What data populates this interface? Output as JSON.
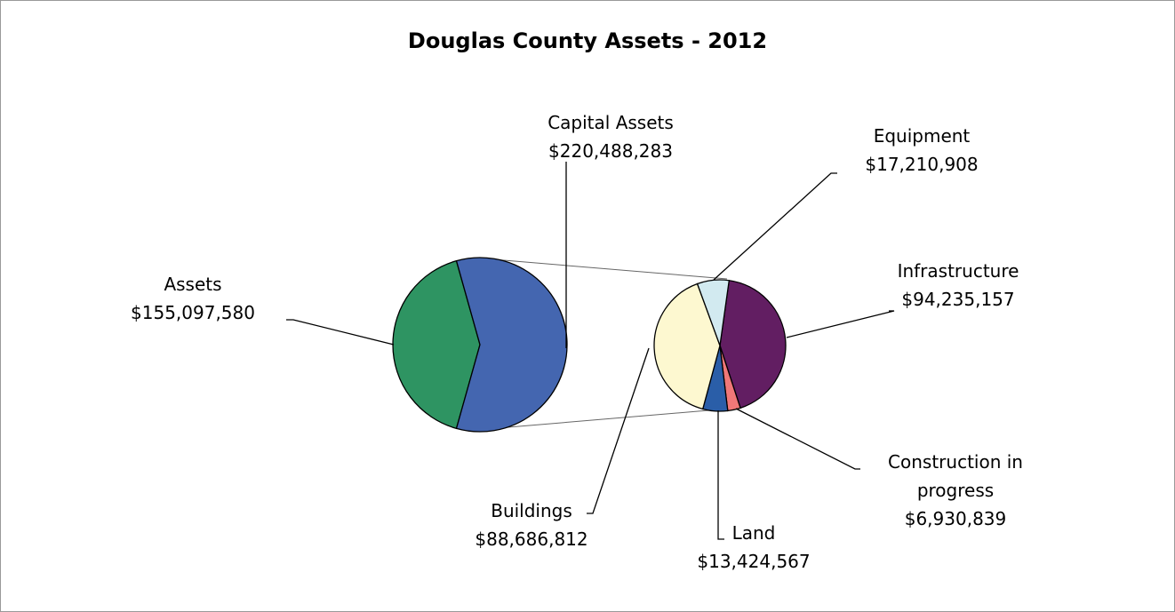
{
  "chart_data": {
    "type": "pie_of_pie",
    "title": "Douglas County Assets - 2012",
    "categories": [
      "Assets",
      "Capital Assets"
    ],
    "values": [
      155097580,
      220488283
    ],
    "value_labels": [
      "$155,097,580",
      "$220,488,283"
    ],
    "colors": [
      "#2e9462",
      "#4466b0"
    ],
    "breakdown": {
      "categories": [
        "Infrastructure",
        "Construction in progress",
        "Land",
        "Buildings",
        "Equipment"
      ],
      "values": [
        94235157,
        6930839,
        13424567,
        88686812,
        17210908
      ],
      "value_labels": [
        "$94,235,157",
        "$6,930,839",
        "$13,424,567",
        "$88,686,812",
        "$17,210,908"
      ],
      "colors": [
        "#621e62",
        "#f07878",
        "#2a5ea8",
        "#fdf8d0",
        "#d2eaf0"
      ]
    }
  }
}
